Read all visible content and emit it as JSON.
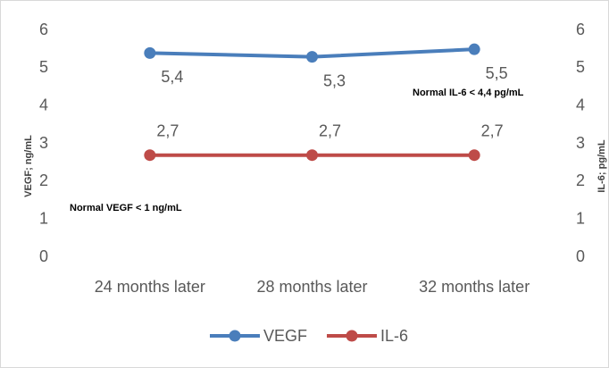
{
  "chart_data": {
    "type": "line",
    "categories": [
      "24 months later",
      "28 months later",
      "32 months later"
    ],
    "series": [
      {
        "name": "VEGF",
        "color": "#4a7ebb",
        "values": [
          5.4,
          5.3,
          5.5
        ],
        "value_labels": [
          "5,4",
          "5,3",
          "5,5"
        ]
      },
      {
        "name": "IL-6",
        "color": "#be4b48",
        "values": [
          2.7,
          2.7,
          2.7
        ],
        "value_labels": [
          "2,7",
          "2,7",
          "2,7"
        ],
        "axis": "y2"
      }
    ],
    "ylim": [
      0,
      6
    ],
    "yticks": [
      0,
      1,
      2,
      3,
      4,
      5,
      6
    ],
    "y2lim": [
      0,
      6
    ],
    "y2ticks": [
      0,
      1,
      2,
      3,
      4,
      5,
      6
    ],
    "y_label": "VEGF; ng/mL",
    "y2_label": "IL-6; pg/mL",
    "annotations": [
      "Normal VEGF < 1 ng/mL",
      "Normal IL-6 < 4,4 pg/mL"
    ],
    "grid": false,
    "legend": "bottom"
  }
}
